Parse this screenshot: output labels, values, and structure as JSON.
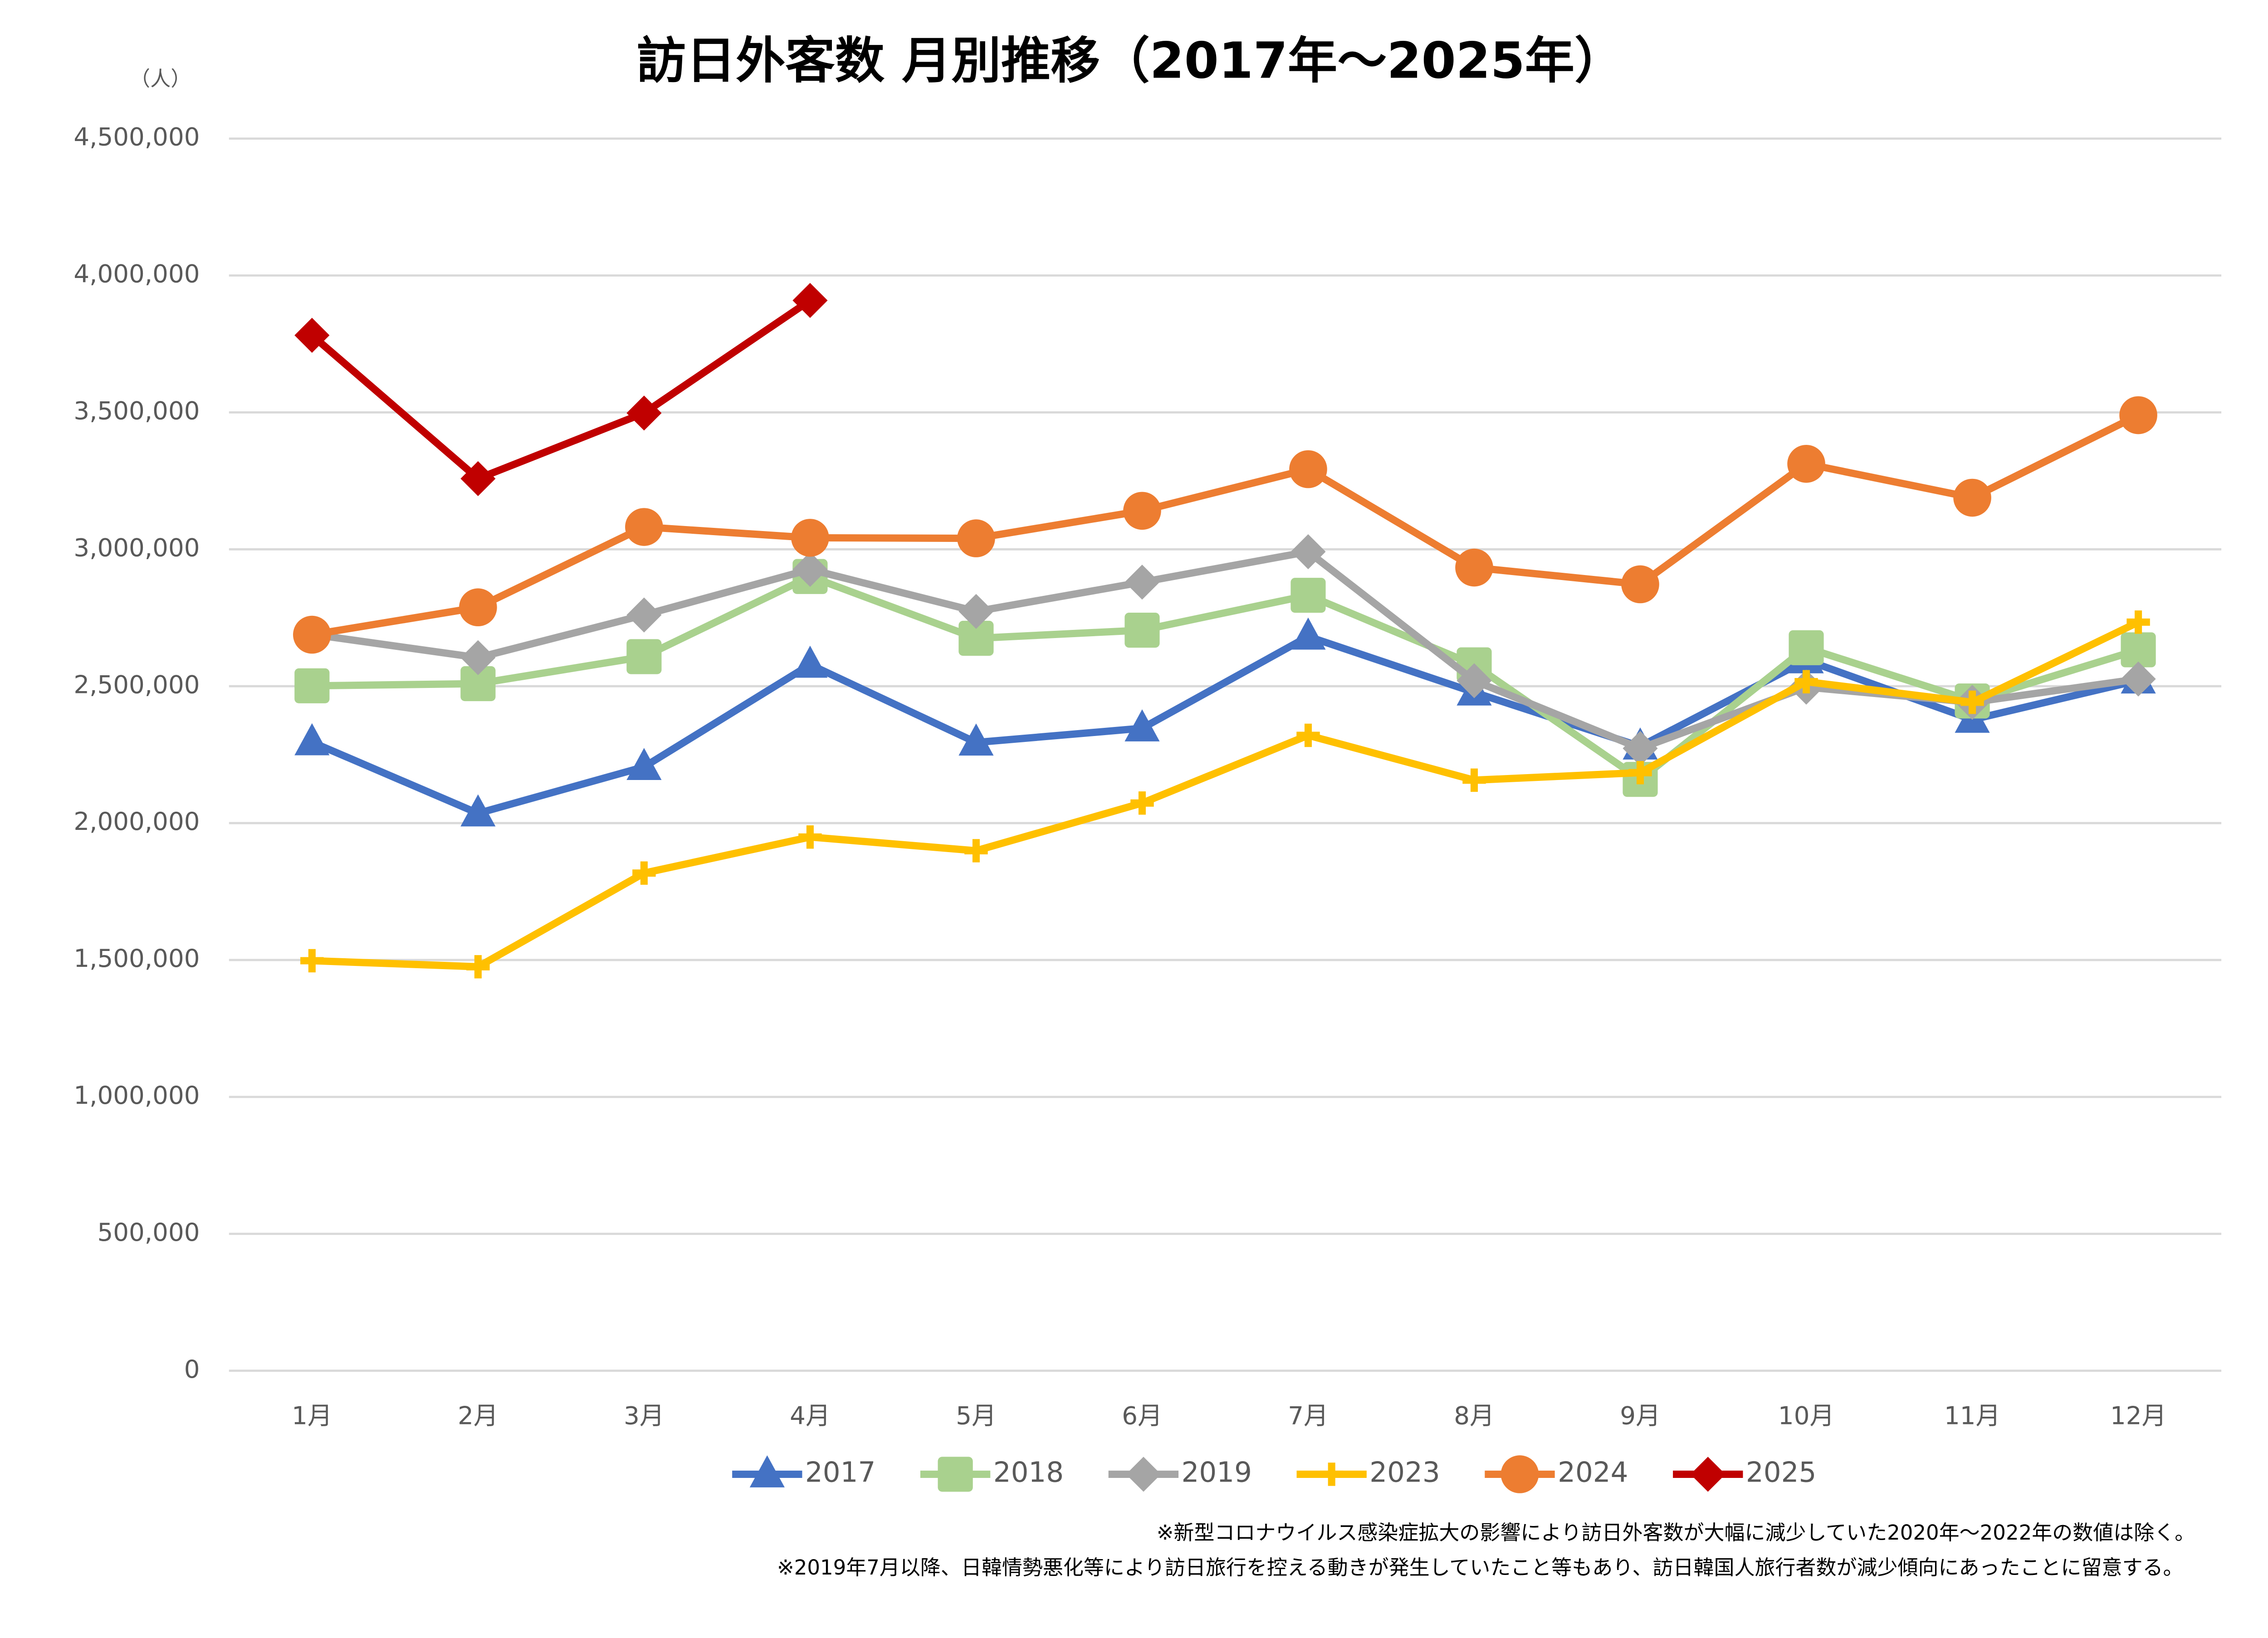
{
  "chart_data": {
    "type": "line",
    "title": "訪日外客数 月別推移（2017年～2025年）",
    "y_unit": "（人）",
    "categories": [
      "1月",
      "2月",
      "3月",
      "4月",
      "5月",
      "6月",
      "7月",
      "8月",
      "9月",
      "10月",
      "11月",
      "12月"
    ],
    "series": [
      {
        "name": "2017",
        "color": "#4472c4",
        "marker": "triangle",
        "values": [
          2295747,
          2035813,
          2205395,
          2578970,
          2294614,
          2346405,
          2681549,
          2477485,
          2280163,
          2595091,
          2377929,
          2521396
        ]
      },
      {
        "name": "2018",
        "color": "#a9d18e",
        "marker": "square",
        "values": [
          2501409,
          2509297,
          2607956,
          2900718,
          2675052,
          2704631,
          2832040,
          2578021,
          2159600,
          2640610,
          2446069,
          2632851
        ]
      },
      {
        "name": "2019",
        "color": "#a5a5a5",
        "marker": "diamond",
        "values": [
          2689339,
          2604322,
          2760136,
          2926685,
          2773091,
          2880041,
          2991189,
          2520134,
          2272883,
          2496568,
          2441274,
          2526387
        ]
      },
      {
        "name": "2023",
        "color": "#ffc000",
        "marker": "plus",
        "values": [
          1497472,
          1475455,
          1817500,
          1949236,
          1899176,
          2073300,
          2320600,
          2156900,
          2184300,
          2516500,
          2441300,
          2734000
        ]
      },
      {
        "name": "2024",
        "color": "#ed7d31",
        "marker": "circle",
        "values": [
          2688100,
          2788100,
          3081600,
          3042100,
          3040100,
          3140600,
          3292600,
          2933300,
          2872200,
          3312200,
          3188400,
          3489800
        ]
      },
      {
        "name": "2025",
        "color": "#c00000",
        "marker": "diamond",
        "values": [
          3781600,
          3258100,
          3497600,
          3908900,
          null,
          null,
          null,
          null,
          null,
          null,
          null,
          null
        ]
      }
    ],
    "ylim": [
      0,
      4500000
    ],
    "yticks": [
      0,
      {
        "value": 500000,
        "label": "500,000"
      },
      {
        "value": 1000000,
        "label": "1,000,000"
      },
      {
        "value": 1500000,
        "label": "1,500,000"
      },
      {
        "value": 2000000,
        "label": "2,000,000"
      },
      {
        "value": 2500000,
        "label": "2,500,000"
      },
      {
        "value": 3000000,
        "label": "3,000,000"
      },
      {
        "value": 3500000,
        "label": "3,500,000"
      },
      {
        "value": 4000000,
        "label": "4,000,000"
      },
      {
        "value": 4500000,
        "label": "4,500,000"
      }
    ],
    "grid": true,
    "legend": "bottom",
    "notes": [
      "※新型コロナウイルス感染症拡大の影響により訪日外客数が大幅に減少していた2020年～2022年の数値は除く。",
      "※2019年7月以降、日韓情勢悪化等により訪日旅行を控える動きが発生していたこと等もあり、訪日韓国人旅行者数が減少傾向にあったことに留意する。"
    ]
  }
}
